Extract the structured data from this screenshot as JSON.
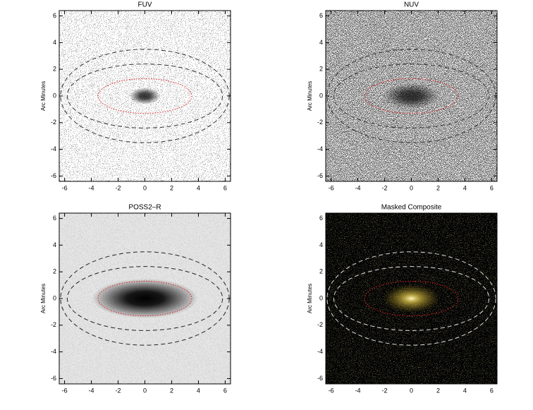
{
  "chart_data": [
    {
      "type": "image",
      "title": "FUV",
      "ylabel": "Arc Minutes",
      "background": "#ffffff",
      "xlim": [
        -6.4,
        6.4
      ],
      "ylim": [
        -6.4,
        6.4
      ],
      "xticks": [
        -6,
        -4,
        -2,
        0,
        2,
        4,
        6
      ],
      "yticks": [
        -6,
        -4,
        -2,
        0,
        2,
        4,
        6
      ],
      "ellipses": [
        {
          "a": 3.5,
          "b": 1.3,
          "color": "#e02020",
          "style": "dotted"
        },
        {
          "a": 5.8,
          "b": 2.4,
          "color": "#333333",
          "style": "dashed"
        },
        {
          "a": 6.3,
          "b": 3.5,
          "color": "#333333",
          "style": "dashed"
        }
      ]
    },
    {
      "type": "image",
      "title": "NUV",
      "ylabel": "Arc Minutes",
      "background": "#ffffff",
      "xlim": [
        -6.4,
        6.4
      ],
      "ylim": [
        -6.4,
        6.4
      ],
      "xticks": [
        -6,
        -4,
        -2,
        0,
        2,
        4,
        6
      ],
      "yticks": [
        -6,
        -4,
        -2,
        0,
        2,
        4,
        6
      ],
      "ellipses": [
        {
          "a": 3.5,
          "b": 1.3,
          "color": "#e02020",
          "style": "dotted"
        },
        {
          "a": 5.8,
          "b": 2.4,
          "color": "#333333",
          "style": "dashed"
        },
        {
          "a": 6.3,
          "b": 3.5,
          "color": "#333333",
          "style": "dashed"
        }
      ]
    },
    {
      "type": "image",
      "title": "POSS2–R",
      "ylabel": "Arc Minutes",
      "background": "#d8d8d8",
      "xlim": [
        -6.4,
        6.4
      ],
      "ylim": [
        -6.4,
        6.4
      ],
      "xticks": [
        -6,
        -4,
        -2,
        0,
        2,
        4,
        6
      ],
      "yticks": [
        -6,
        -4,
        -2,
        0,
        2,
        4,
        6
      ],
      "ellipses": [
        {
          "a": 3.5,
          "b": 1.3,
          "color": "#e02020",
          "style": "dotted"
        },
        {
          "a": 5.8,
          "b": 2.4,
          "color": "#222222",
          "style": "dashed"
        },
        {
          "a": 6.3,
          "b": 3.5,
          "color": "#222222",
          "style": "dashed"
        }
      ]
    },
    {
      "type": "image",
      "title": "Masked Composite",
      "ylabel": "Arc Minutes",
      "background": "#050505",
      "xlim": [
        -6.4,
        6.4
      ],
      "ylim": [
        -6.4,
        6.4
      ],
      "xticks": [
        -6,
        -4,
        -2,
        0,
        2,
        4,
        6
      ],
      "yticks": [
        -6,
        -4,
        -2,
        0,
        2,
        4,
        6
      ],
      "ellipses": [
        {
          "a": 3.5,
          "b": 1.3,
          "color": "#e02020",
          "style": "dotted"
        },
        {
          "a": 5.8,
          "b": 2.4,
          "color": "#dddddd",
          "style": "dashed"
        },
        {
          "a": 6.3,
          "b": 3.5,
          "color": "#dddddd",
          "style": "dashed"
        }
      ]
    }
  ]
}
